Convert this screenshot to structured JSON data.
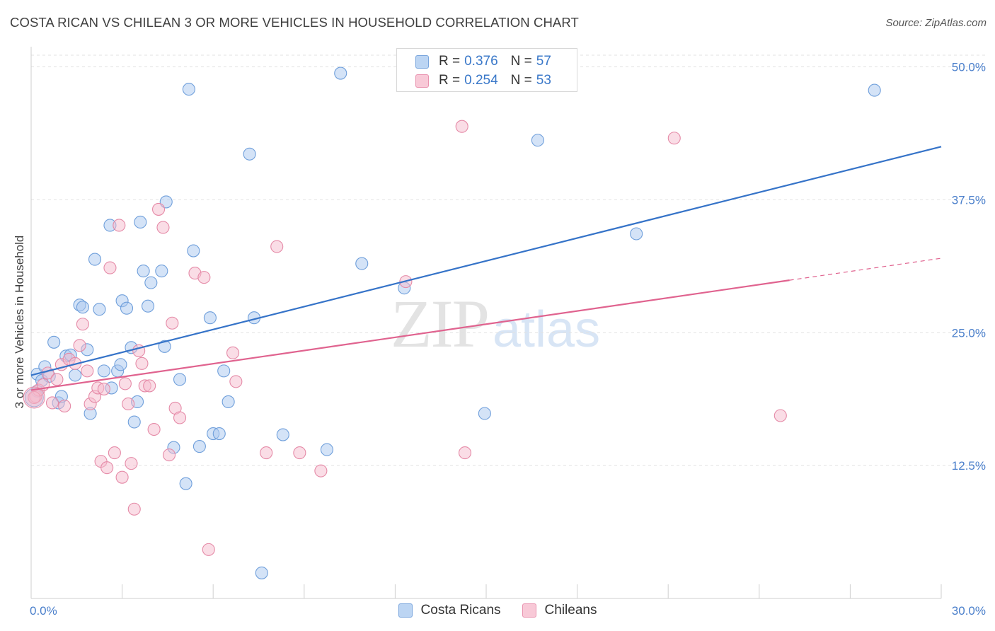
{
  "title": "COSTA RICAN VS CHILEAN 3 OR MORE VEHICLES IN HOUSEHOLD CORRELATION CHART",
  "source": "Source: ZipAtlas.com",
  "watermark": {
    "zip": "ZIP",
    "atlas": "atlas"
  },
  "legend": {
    "series": [
      {
        "r_label": "R =",
        "r_value": "0.376",
        "n_label": "N =",
        "n_value": "57"
      },
      {
        "r_label": "R =",
        "r_value": "0.254",
        "n_label": "N =",
        "n_value": "53"
      }
    ]
  },
  "colors": {
    "blue_fill": "#a9c8ef",
    "blue_stroke": "#6f9fdb",
    "blue_line": "#3573c8",
    "pink_fill": "#f6bccd",
    "pink_stroke": "#e58aa7",
    "pink_line": "#e0638f",
    "tick_label": "#4a7fcb",
    "grid": "#e2e2e2"
  },
  "chart_data": {
    "type": "scatter",
    "title": "COSTA RICAN VS CHILEAN 3 OR MORE VEHICLES IN HOUSEHOLD CORRELATION CHART",
    "xlabel": "",
    "ylabel": "3 or more Vehicles in Household",
    "xlim": [
      0,
      30
    ],
    "ylim": [
      0,
      51.5
    ],
    "x_tick_labels": [
      "0.0%",
      "30.0%"
    ],
    "y_ticks": [
      12.5,
      25.0,
      37.5,
      50.0
    ],
    "y_tick_labels": [
      "12.5%",
      "25.0%",
      "37.5%",
      "50.0%"
    ],
    "grid": true,
    "legend_position": "top-center",
    "series": [
      {
        "name": "Costa Ricans",
        "trend": {
          "x": [
            0.0,
            30.0
          ],
          "y": [
            21.0,
            42.5
          ],
          "dashed_from": null
        },
        "points": [
          [
            0.2,
            21.1
          ],
          [
            0.2,
            19.5
          ],
          [
            0.35,
            20.5
          ],
          [
            0.45,
            21.8
          ],
          [
            0.6,
            20.9
          ],
          [
            0.75,
            24.1
          ],
          [
            0.9,
            18.4
          ],
          [
            1.0,
            19.0
          ],
          [
            1.15,
            22.8
          ],
          [
            1.3,
            22.9
          ],
          [
            1.45,
            21.0
          ],
          [
            1.6,
            27.6
          ],
          [
            1.7,
            27.4
          ],
          [
            1.85,
            23.4
          ],
          [
            1.95,
            17.4
          ],
          [
            2.1,
            31.9
          ],
          [
            2.25,
            27.2
          ],
          [
            2.4,
            21.4
          ],
          [
            2.6,
            35.1
          ],
          [
            2.65,
            19.8
          ],
          [
            2.85,
            21.4
          ],
          [
            2.95,
            22.0
          ],
          [
            3.0,
            28.0
          ],
          [
            3.15,
            27.3
          ],
          [
            3.3,
            23.6
          ],
          [
            3.4,
            16.6
          ],
          [
            3.5,
            18.5
          ],
          [
            3.6,
            35.4
          ],
          [
            3.7,
            30.8
          ],
          [
            3.85,
            27.5
          ],
          [
            3.95,
            29.7
          ],
          [
            4.3,
            30.8
          ],
          [
            4.4,
            23.7
          ],
          [
            4.45,
            37.3
          ],
          [
            4.7,
            14.2
          ],
          [
            4.9,
            20.6
          ],
          [
            5.1,
            10.8
          ],
          [
            5.2,
            47.9
          ],
          [
            5.35,
            32.7
          ],
          [
            5.55,
            14.3
          ],
          [
            5.9,
            26.4
          ],
          [
            6.0,
            15.5
          ],
          [
            6.2,
            15.5
          ],
          [
            6.35,
            21.4
          ],
          [
            6.5,
            18.5
          ],
          [
            7.2,
            41.8
          ],
          [
            7.35,
            26.4
          ],
          [
            7.6,
            2.4
          ],
          [
            8.3,
            15.4
          ],
          [
            9.75,
            14.0
          ],
          [
            10.2,
            49.4
          ],
          [
            10.9,
            31.5
          ],
          [
            12.3,
            29.2
          ],
          [
            14.95,
            17.4
          ],
          [
            16.7,
            43.1
          ],
          [
            19.95,
            34.3
          ],
          [
            27.8,
            47.8
          ]
        ]
      },
      {
        "name": "Chileans",
        "trend": {
          "x": [
            0.0,
            30.0
          ],
          "y": [
            19.6,
            32.0
          ],
          "dashed_from": 25.0
        },
        "points": [
          [
            0.15,
            19.0
          ],
          [
            0.25,
            19.6
          ],
          [
            0.4,
            20.1
          ],
          [
            0.55,
            21.2
          ],
          [
            0.7,
            18.4
          ],
          [
            0.85,
            20.6
          ],
          [
            1.0,
            22.0
          ],
          [
            1.1,
            18.1
          ],
          [
            1.25,
            22.5
          ],
          [
            1.45,
            22.1
          ],
          [
            1.6,
            23.8
          ],
          [
            1.7,
            25.8
          ],
          [
            1.85,
            21.4
          ],
          [
            1.95,
            18.3
          ],
          [
            2.1,
            19.0
          ],
          [
            2.2,
            19.8
          ],
          [
            2.3,
            12.9
          ],
          [
            2.4,
            19.7
          ],
          [
            2.5,
            12.3
          ],
          [
            2.6,
            31.1
          ],
          [
            2.75,
            13.7
          ],
          [
            2.9,
            35.1
          ],
          [
            3.0,
            11.4
          ],
          [
            3.1,
            20.2
          ],
          [
            3.2,
            18.3
          ],
          [
            3.3,
            12.7
          ],
          [
            3.4,
            8.4
          ],
          [
            3.55,
            23.3
          ],
          [
            3.65,
            22.1
          ],
          [
            3.75,
            20.0
          ],
          [
            3.9,
            20.0
          ],
          [
            4.05,
            15.9
          ],
          [
            4.2,
            36.6
          ],
          [
            4.35,
            34.9
          ],
          [
            4.55,
            13.5
          ],
          [
            4.65,
            25.9
          ],
          [
            4.75,
            17.9
          ],
          [
            4.9,
            17.0
          ],
          [
            5.4,
            30.6
          ],
          [
            5.7,
            30.2
          ],
          [
            5.85,
            4.6
          ],
          [
            6.65,
            23.1
          ],
          [
            6.75,
            20.4
          ],
          [
            7.75,
            13.7
          ],
          [
            8.1,
            33.1
          ],
          [
            8.85,
            13.7
          ],
          [
            9.55,
            12.0
          ],
          [
            12.35,
            29.8
          ],
          [
            14.2,
            44.4
          ],
          [
            14.3,
            13.7
          ],
          [
            21.2,
            43.3
          ],
          [
            24.7,
            17.2
          ],
          [
            0.1,
            18.9
          ]
        ]
      }
    ]
  },
  "bottom_legend": [
    "Costa Ricans",
    "Chileans"
  ]
}
